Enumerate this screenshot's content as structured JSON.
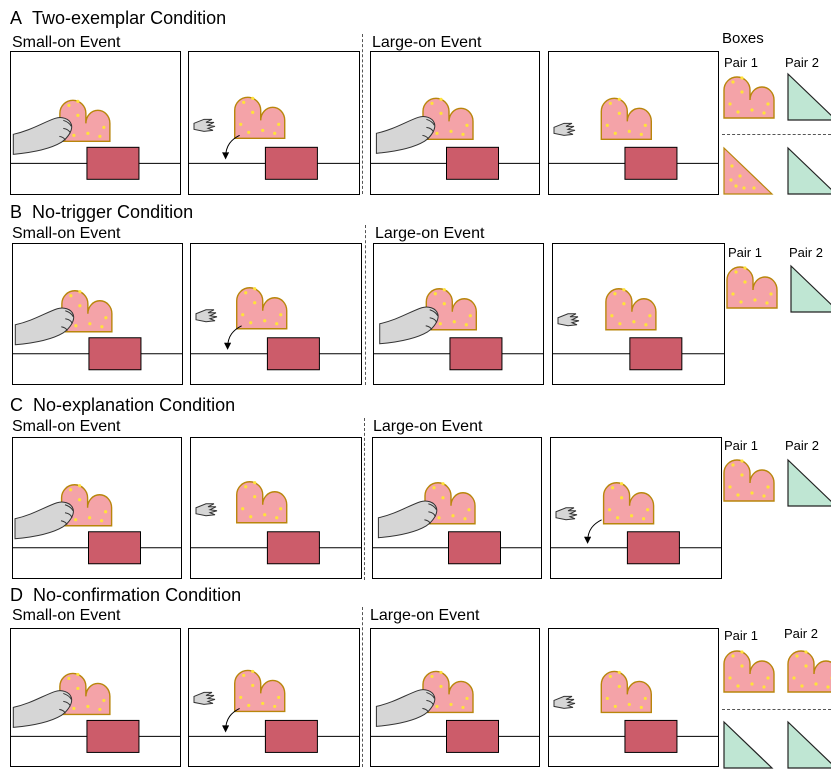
{
  "sections": [
    {
      "letter": "A",
      "title": "Two-exemplar Condition",
      "left_event": "Small-on Event",
      "right_event": "Large-on Event",
      "boxes_label": "Boxes",
      "pair1": "Pair 1",
      "pair2": "Pair 2"
    },
    {
      "letter": "B",
      "title": "No-trigger Condition",
      "left_event": "Small-on Event",
      "right_event": "Large-on Event",
      "pair1": "Pair 1",
      "pair2": "Pair 2"
    },
    {
      "letter": "C",
      "title": "No-explanation Condition",
      "left_event": "Small-on Event",
      "right_event": "Large-on Event",
      "pair1": "Pair 1",
      "pair2": "Pair 2"
    },
    {
      "letter": "D",
      "title": "No-confirmation Condition",
      "left_event": "Small-on Event",
      "right_event": "Large-on Event",
      "pair1": "Pair 1",
      "pair2": "Pair 2"
    }
  ],
  "colors": {
    "block_fill": "#f4a3a8",
    "block_stroke": "#b8860b",
    "dot": "#ffe23a",
    "base_fill": "#cc5c6a",
    "triangle_fill": "#bfe6d3",
    "hand": "#d6d6d6"
  }
}
